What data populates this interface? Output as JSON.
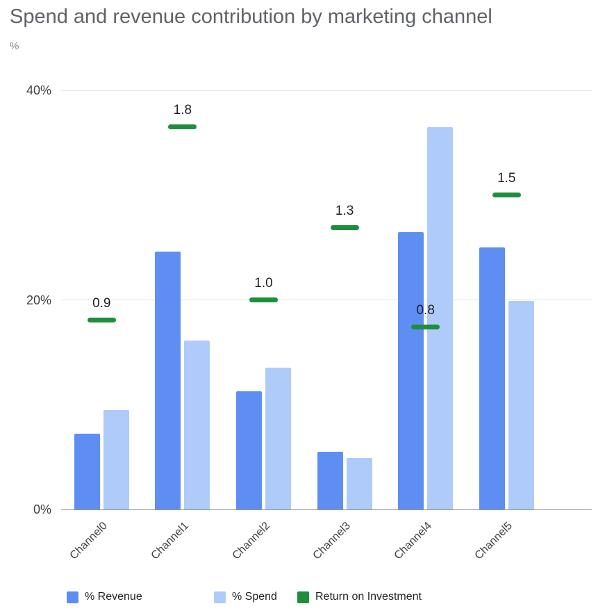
{
  "chart_data": {
    "type": "bar",
    "title": "Spend and revenue contribution by marketing channel",
    "ylabel": "%",
    "categories": [
      "Channel0",
      "Channel1",
      "Channel2",
      "Channel3",
      "Channel4",
      "Channel5"
    ],
    "series": [
      {
        "name": "% Revenue",
        "type": "bar",
        "color": "#5f8ef3",
        "values": [
          7.2,
          24.6,
          11.3,
          5.5,
          26.5,
          25.0
        ]
      },
      {
        "name": "% Spend",
        "type": "bar",
        "color": "#aecbfa",
        "values": [
          9.5,
          16.1,
          13.5,
          4.9,
          36.5,
          19.9
        ]
      },
      {
        "name": "Return on Investment",
        "type": "marker",
        "color": "#1e8e3e",
        "values": [
          0.9,
          1.8,
          1.0,
          1.3,
          0.8,
          1.5
        ],
        "labels": [
          "0.9",
          "1.8",
          "1.0",
          "1.3",
          "0.8",
          "1.5"
        ],
        "marker_axis_pct": [
          18.1,
          36.5,
          20.0,
          26.9,
          17.4,
          30.0
        ]
      }
    ],
    "ylim": [
      0,
      40
    ],
    "yticks": [
      {
        "value": 0,
        "label": "0%"
      },
      {
        "value": 20,
        "label": "20%"
      },
      {
        "value": 40,
        "label": "40%"
      }
    ],
    "grid": true,
    "legend_position": "bottom"
  }
}
